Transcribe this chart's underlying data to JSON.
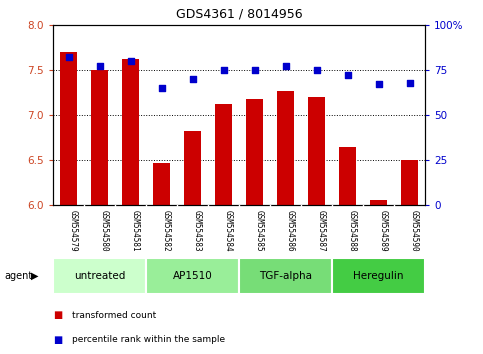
{
  "title": "GDS4361 / 8014956",
  "samples": [
    "GSM554579",
    "GSM554580",
    "GSM554581",
    "GSM554582",
    "GSM554583",
    "GSM554584",
    "GSM554585",
    "GSM554586",
    "GSM554587",
    "GSM554588",
    "GSM554589",
    "GSM554590"
  ],
  "bar_values": [
    7.7,
    7.5,
    7.62,
    6.47,
    6.82,
    7.12,
    7.18,
    7.27,
    7.2,
    6.65,
    6.06,
    6.5
  ],
  "dot_values_pct": [
    82,
    77,
    80,
    65,
    70,
    75,
    75,
    77,
    75,
    72,
    67,
    68
  ],
  "bar_color": "#cc0000",
  "dot_color": "#0000cc",
  "ylim_left": [
    6.0,
    8.0
  ],
  "ylim_right": [
    0,
    100
  ],
  "yticks_left": [
    6.0,
    6.5,
    7.0,
    7.5,
    8.0
  ],
  "yticks_right": [
    0,
    25,
    50,
    75,
    100
  ],
  "ytick_labels_right": [
    "0",
    "25",
    "50",
    "75",
    "100%"
  ],
  "groups": [
    {
      "label": "untreated",
      "start": 0,
      "end": 3,
      "color": "#ccffcc"
    },
    {
      "label": "AP1510",
      "start": 3,
      "end": 6,
      "color": "#99ee99"
    },
    {
      "label": "TGF-alpha",
      "start": 6,
      "end": 9,
      "color": "#77dd77"
    },
    {
      "label": "Heregulin",
      "start": 9,
      "end": 12,
      "color": "#44cc44"
    }
  ],
  "legend_bar_label": "transformed count",
  "legend_dot_label": "percentile rank within the sample",
  "agent_label": "agent",
  "background_color": "#ffffff",
  "sample_area_color": "#cccccc",
  "left_tick_color": "#cc4422",
  "right_tick_color": "#0000cc"
}
